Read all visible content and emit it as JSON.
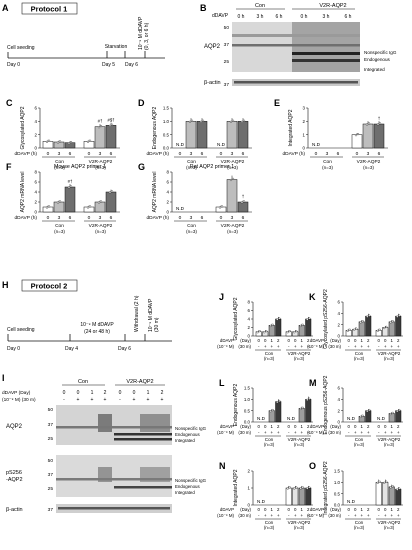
{
  "panel_letters": {
    "A": "A",
    "B": "B",
    "C": "C",
    "D": "D",
    "E": "E",
    "F": "F",
    "G": "G",
    "H": "H",
    "I": "I",
    "J": "J",
    "K": "K",
    "L": "L",
    "M": "M",
    "N": "N",
    "O": "O"
  },
  "protocol1": {
    "title": "Protocol 1",
    "seeding": "Cell seeding",
    "starvation": "Starvation",
    "ddavp_rot": "10⁻⁹ M dDAVP",
    "ddavp_rot2": "(0, 3, or 6 h)",
    "ticks": [
      "Day 0",
      "Day 5",
      "Day 6"
    ]
  },
  "protocol2": {
    "title": "Protocol 2",
    "seeding": "Cell seeding",
    "ddavp": "10⁻⁹ M dDAVP",
    "ddavp_dur": "(24 or 48 h)",
    "withdrawal": "Withdrawal (2 h)",
    "ddavp30": "10⁻⁹ M dDAVP",
    "dur30": "(30 m)",
    "ticks": [
      "Day 0",
      "Day 4",
      "Day 6"
    ]
  },
  "blot_b": {
    "groups": [
      "Con",
      "V2R-AQP2"
    ],
    "row_label": "dDAVP",
    "times": [
      "0 h",
      "3 h",
      "6 h",
      "0 h",
      "3 h",
      "6 h"
    ],
    "markers": [
      "50",
      "37",
      "25",
      "37"
    ],
    "protein": "AQP2",
    "loading": "β-actin",
    "annotations": [
      "Nonspecific IgG",
      "Endogenous",
      "Integrated"
    ]
  },
  "blot_i": {
    "groups": [
      "Con",
      "V2R-AQP2"
    ],
    "row1": "dDAVP (Day)",
    "row2": "(10⁻⁹ M) (30 m)",
    "day": [
      "0",
      "0",
      "1",
      "2",
      "0",
      "0",
      "1",
      "2"
    ],
    "m30": [
      "-",
      "+",
      "+",
      "+",
      "-",
      "+",
      "+",
      "+"
    ],
    "marker_set1": [
      "50",
      "37",
      "25"
    ],
    "marker_set2": [
      "50",
      "37",
      "25"
    ],
    "marker_actin": "37",
    "protein1": "AQP2",
    "protein2a": "pS256",
    "protein2b": "-AQP2",
    "loading": "β-actin",
    "annotations": [
      "Nonspecific IgG",
      "Endogenous",
      "Integrated"
    ]
  },
  "axis_labels": {
    "ddavp_h": "dDAVP (h)",
    "day": "(Day)",
    "m30": "(30 m)",
    "ddavp_word": "dDAVP",
    "conc": "(10⁻⁹ M)",
    "con": "Con",
    "v2r": "V2R-AQP2",
    "n3": "(n=3)",
    "nd": "N.D"
  },
  "panels_top": [
    {
      "letter": "C",
      "ylabel": "Glycosylated AQP2",
      "ymax": 6,
      "ticks": [
        "0",
        "2",
        "4",
        "6"
      ],
      "sig": [
        "",
        "",
        "",
        "",
        "#†",
        "#$†",
        "",
        "#$†"
      ]
    },
    {
      "letter": "D",
      "ylabel": "Endogenous AQP2",
      "ymax": 1.5,
      "ticks": [
        "0.0",
        "0.5",
        "1.0",
        "1.5"
      ],
      "sig": [
        "",
        "",
        "",
        "",
        "",
        "",
        "",
        ""
      ]
    },
    {
      "letter": "E",
      "ylabel": "Integrated AQP2",
      "ymax": 3,
      "ticks": [
        "0",
        "1",
        "2",
        "3"
      ],
      "sig": [
        "",
        "",
        "",
        "",
        "",
        "†",
        "†",
        ""
      ]
    },
    {
      "letter": "F",
      "ylabel": "AQP2 mRNA level",
      "ymax": 8,
      "ticks": [
        "0",
        "2",
        "4",
        "6",
        "8"
      ],
      "sig": [
        "",
        "",
        "#†",
        "",
        "",
        "",
        "#†‡",
        ""
      ],
      "title": "Mouse AQP2 primer 1"
    },
    {
      "letter": "G",
      "ylabel": "AQP2 mRNA level",
      "ymax": 8,
      "ticks": [
        "0",
        "2",
        "4",
        "6",
        "8"
      ],
      "sig": [
        "",
        "",
        "",
        "",
        "",
        "†",
        "",
        ""
      ],
      "title": "Rat AQP2 primer 1"
    }
  ],
  "panels_bottom": [
    {
      "letter": "J",
      "ylabel": "Glycosylated AQP2",
      "ticks": [
        "0",
        "2",
        "4",
        "6",
        "8"
      ]
    },
    {
      "letter": "K",
      "ylabel": "Glycosylated pS256-AQP2",
      "ticks": [
        "0",
        "2",
        "4",
        "6"
      ]
    },
    {
      "letter": "L",
      "ylabel": "Endogenous AQP2",
      "ticks": [
        "0.0",
        "0.5",
        "1.0",
        "1.5"
      ]
    },
    {
      "letter": "M",
      "ylabel": "Endogenous pS256-AQP2",
      "ticks": [
        "0",
        "2",
        "4",
        "6"
      ]
    },
    {
      "letter": "N",
      "ylabel": "Integrated AQP2",
      "ticks": [
        "0",
        "1",
        "2"
      ]
    },
    {
      "letter": "O",
      "ylabel": "Integrated pS256-AQP2",
      "ticks": [
        "0.0",
        "0.5",
        "1.0",
        "1.5"
      ]
    }
  ],
  "chart_data": [
    {
      "type": "bar",
      "id": "C",
      "ylim": [
        0,
        6
      ],
      "categories": [
        "Con 0",
        "Con 3",
        "Con 6",
        "V2R-AQP2 0",
        "V2R-AQP2 3",
        "V2R-AQP2 6"
      ],
      "values": [
        1,
        0.9,
        0.8,
        1,
        3.2,
        3.4
      ]
    },
    {
      "type": "bar",
      "id": "D",
      "ylim": [
        0,
        1.5
      ],
      "categories": [
        "Con 0",
        "Con 3",
        "Con 6",
        "V2R-AQP2 0",
        "V2R-AQP2 3",
        "V2R-AQP2 6"
      ],
      "values": [
        0,
        1,
        1,
        0,
        1,
        1
      ]
    },
    {
      "type": "bar",
      "id": "E",
      "ylim": [
        0,
        3
      ],
      "categories": [
        "Con 0",
        "Con 3",
        "Con 6",
        "V2R-AQP2 0",
        "V2R-AQP2 3",
        "V2R-AQP2 6"
      ],
      "values": [
        0,
        0,
        0,
        1,
        1.8,
        1.8
      ]
    },
    {
      "type": "bar",
      "id": "F",
      "ylim": [
        0,
        8
      ],
      "categories": [
        "Con 0",
        "Con 3",
        "Con 6",
        "V2R-AQP2 0",
        "V2R-AQP2 3",
        "V2R-AQP2 6"
      ],
      "values": [
        1,
        2,
        5,
        1,
        2,
        4
      ]
    },
    {
      "type": "bar",
      "id": "G",
      "ylim": [
        0,
        8
      ],
      "categories": [
        "Con 0",
        "Con 3",
        "Con 6",
        "V2R-AQP2 0",
        "V2R-AQP2 3",
        "V2R-AQP2 6"
      ],
      "values": [
        0,
        0,
        0,
        1,
        6.5,
        2
      ]
    },
    {
      "type": "bar",
      "id": "J",
      "ylim": [
        0,
        8
      ],
      "categories": [
        "Con 0-",
        "Con 0+",
        "Con 1+",
        "Con 2+",
        "V2R 0-",
        "V2R 0+",
        "V2R 1+",
        "V2R 2+"
      ],
      "values": [
        1,
        1,
        2.5,
        4,
        1,
        1,
        2.5,
        4
      ]
    },
    {
      "type": "bar",
      "id": "K",
      "ylim": [
        0,
        6
      ],
      "categories": [
        "Con 0-",
        "Con 0+",
        "Con 1+",
        "Con 2+",
        "V2R 0-",
        "V2R 0+",
        "V2R 1+",
        "V2R 2+"
      ],
      "values": [
        1,
        1.2,
        2.5,
        3.5,
        1,
        1.5,
        2.5,
        3.5
      ]
    },
    {
      "type": "bar",
      "id": "L",
      "ylim": [
        0,
        1.5
      ],
      "categories": [
        "Con 0-",
        "Con 0+",
        "Con 1+",
        "Con 2+",
        "V2R 0-",
        "V2R 0+",
        "V2R 1+",
        "V2R 2+"
      ],
      "values": [
        0,
        0,
        0.5,
        0.9,
        0,
        0,
        0.6,
        1
      ]
    },
    {
      "type": "bar",
      "id": "M",
      "ylim": [
        0,
        6
      ],
      "categories": [
        "Con 0-",
        "Con 0+",
        "Con 1+",
        "Con 2+",
        "V2R 0-",
        "V2R 0+",
        "V2R 1+",
        "V2R 2+"
      ],
      "values": [
        0,
        0,
        1,
        2,
        0,
        0,
        1.5,
        2
      ]
    },
    {
      "type": "bar",
      "id": "N",
      "ylim": [
        0,
        2
      ],
      "categories": [
        "Con 0-",
        "Con 0+",
        "Con 1+",
        "Con 2+",
        "V2R 0-",
        "V2R 0+",
        "V2R 1+",
        "V2R 2+"
      ],
      "values": [
        0,
        0,
        0,
        0,
        1,
        1,
        1,
        1
      ]
    },
    {
      "type": "bar",
      "id": "O",
      "ylim": [
        0,
        1.5
      ],
      "categories": [
        "Con 0-",
        "Con 0+",
        "Con 1+",
        "Con 2+",
        "V2R 0-",
        "V2R 0+",
        "V2R 1+",
        "V2R 2+"
      ],
      "values": [
        0,
        0,
        0,
        0,
        1,
        1,
        0.8,
        0.7
      ]
    }
  ]
}
